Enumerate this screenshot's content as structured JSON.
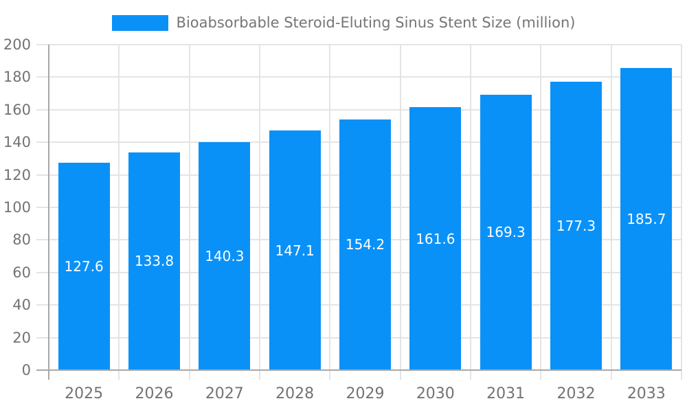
{
  "legend": {
    "swatch_color": "#0a91f8",
    "label": "Bioabsorbable Steroid-Eluting Sinus Stent Size (million)"
  },
  "chart_data": {
    "type": "bar",
    "title": "Bioabsorbable Steroid-Eluting Sinus Stent Size (million)",
    "series_name": "Bioabsorbable Steroid-Eluting Sinus Stent Size (million)",
    "categories": [
      "2025",
      "2026",
      "2027",
      "2028",
      "2029",
      "2030",
      "2031",
      "2032",
      "2033"
    ],
    "values": [
      127.6,
      133.8,
      140.3,
      147.1,
      154.2,
      161.6,
      169.3,
      177.3,
      185.7
    ],
    "value_labels": [
      "127.6",
      "133.8",
      "140.3",
      "147.1",
      "154.2",
      "161.6",
      "169.3",
      "177.3",
      "185.7"
    ],
    "xlabel": "",
    "ylabel": "",
    "ylim": [
      0,
      200
    ],
    "ytick_interval": 20,
    "ytick_labels": [
      "0",
      "20",
      "40",
      "60",
      "80",
      "100",
      "120",
      "140",
      "160",
      "180",
      "200"
    ],
    "grid": true,
    "legend_position": "top-center",
    "colors": {
      "bar": "#0a91f8",
      "bar_value_text": "#ffffff",
      "grid_line": "#e4e4e4",
      "axis_line": "#a8a8a8",
      "tick_text": "#737373",
      "title_text": "#757575"
    }
  }
}
